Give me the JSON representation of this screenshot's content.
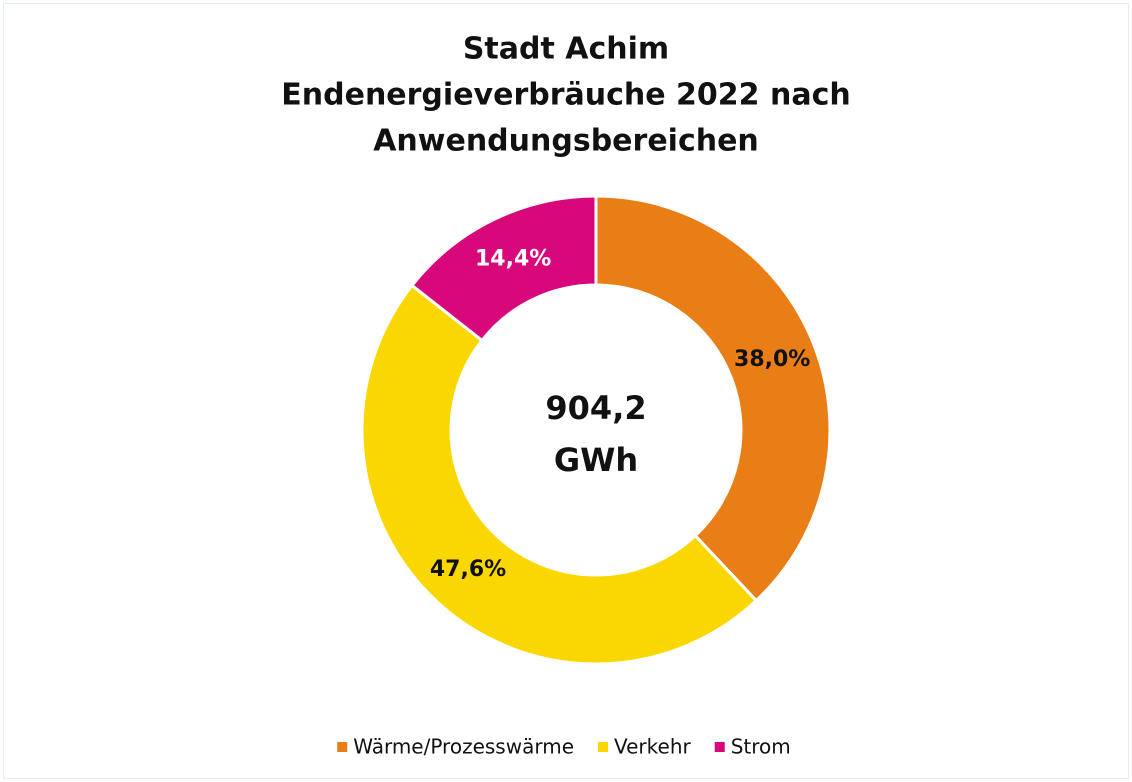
{
  "chart_data": {
    "type": "donut",
    "title": [
      "Stadt Achim",
      "Endenergieverbräuche 2022 nach",
      "Anwendungsbereichen"
    ],
    "center_text": [
      "904,2",
      "GWh"
    ],
    "categories": [
      "Wärme/Prozesswärme",
      "Verkehr",
      "Strom"
    ],
    "values": [
      38.0,
      47.6,
      14.4
    ],
    "value_labels": [
      "38,0%",
      "47,6%",
      "14,4%"
    ],
    "colors": [
      "#E97D16",
      "#FAD700",
      "#D9087A"
    ],
    "label_colors": [
      "#111111",
      "#111111",
      "#ffffff"
    ],
    "legend": "bottom"
  }
}
